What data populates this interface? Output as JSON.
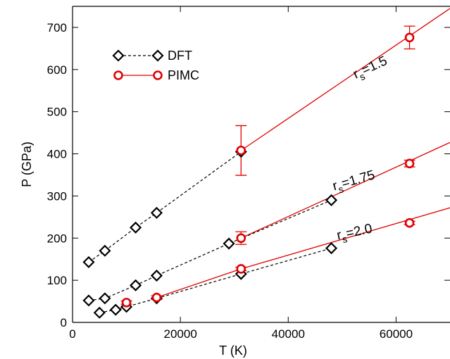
{
  "chart_data": {
    "type": "scatter",
    "xlabel": "T (K)",
    "ylabel": "P (GPa)",
    "xlim": [
      0,
      70000
    ],
    "ylim": [
      0,
      750
    ],
    "xticks": [
      0,
      20000,
      40000,
      60000
    ],
    "yticks": [
      0,
      100,
      200,
      300,
      400,
      500,
      600,
      700
    ],
    "grid": false,
    "legend_placement": "top-left",
    "colors": {
      "dft": "#000000",
      "pimc": "#e00000"
    },
    "legend": {
      "dft_label": "DFT",
      "pimc_label": "PIMC"
    },
    "series": [
      {
        "name": "DFT",
        "group": "rs=1.5",
        "marker": "diamond",
        "line": "dashed",
        "x": [
          3000,
          6000,
          11700,
          15600,
          31250
        ],
        "y": [
          143,
          170,
          225,
          260,
          405
        ]
      },
      {
        "name": "DFT",
        "group": "rs=1.75",
        "marker": "diamond",
        "line": "dashed",
        "x": [
          3000,
          6000,
          11700,
          15600,
          29000,
          48000
        ],
        "y": [
          52,
          57,
          88,
          111,
          187,
          290
        ]
      },
      {
        "name": "DFT",
        "group": "rs=2.0",
        "marker": "diamond",
        "line": "dashed",
        "x": [
          5000,
          8000,
          10000,
          15600,
          31250,
          48000
        ],
        "y": [
          23,
          30,
          37,
          57,
          115,
          176
        ]
      },
      {
        "name": "PIMC",
        "group": "rs=1.5",
        "marker": "circle",
        "line": "solid",
        "x": [
          31250,
          62500
        ],
        "y": [
          408,
          676
        ],
        "yerr": [
          59,
          27
        ]
      },
      {
        "name": "PIMC",
        "group": "rs=1.75",
        "marker": "circle",
        "line": "solid",
        "x": [
          31250,
          62500
        ],
        "y": [
          200,
          377
        ],
        "yerr": [
          15,
          8
        ]
      },
      {
        "name": "PIMC",
        "group": "rs=2.0",
        "marker": "circle",
        "line": "solid",
        "x": [
          10000,
          15600,
          31250,
          62500
        ],
        "y": [
          47,
          59,
          127,
          236
        ],
        "yerr": [
          4,
          4,
          4,
          4
        ]
      }
    ],
    "fit_lines": [
      {
        "group": "rs=1.5",
        "x": [
          31250,
          70000
        ],
        "y": [
          408,
          745
        ]
      },
      {
        "group": "rs=1.75",
        "x": [
          31250,
          70000
        ],
        "y": [
          200,
          427
        ]
      },
      {
        "group": "rs=2.0",
        "x": [
          15600,
          31250,
          70000
        ],
        "y": [
          59,
          127,
          272
        ]
      }
    ],
    "annotations": [
      {
        "id": "rs15",
        "base": "r",
        "sub": "s",
        "value": "=1.5",
        "x": 52500,
        "y": 578
      },
      {
        "id": "rs175",
        "base": "r",
        "sub": "s",
        "value": "=1.75",
        "x": 48500,
        "y": 313
      },
      {
        "id": "rs20",
        "base": "r",
        "sub": "s",
        "value": "=2.0",
        "x": 49200,
        "y": 196
      }
    ]
  }
}
